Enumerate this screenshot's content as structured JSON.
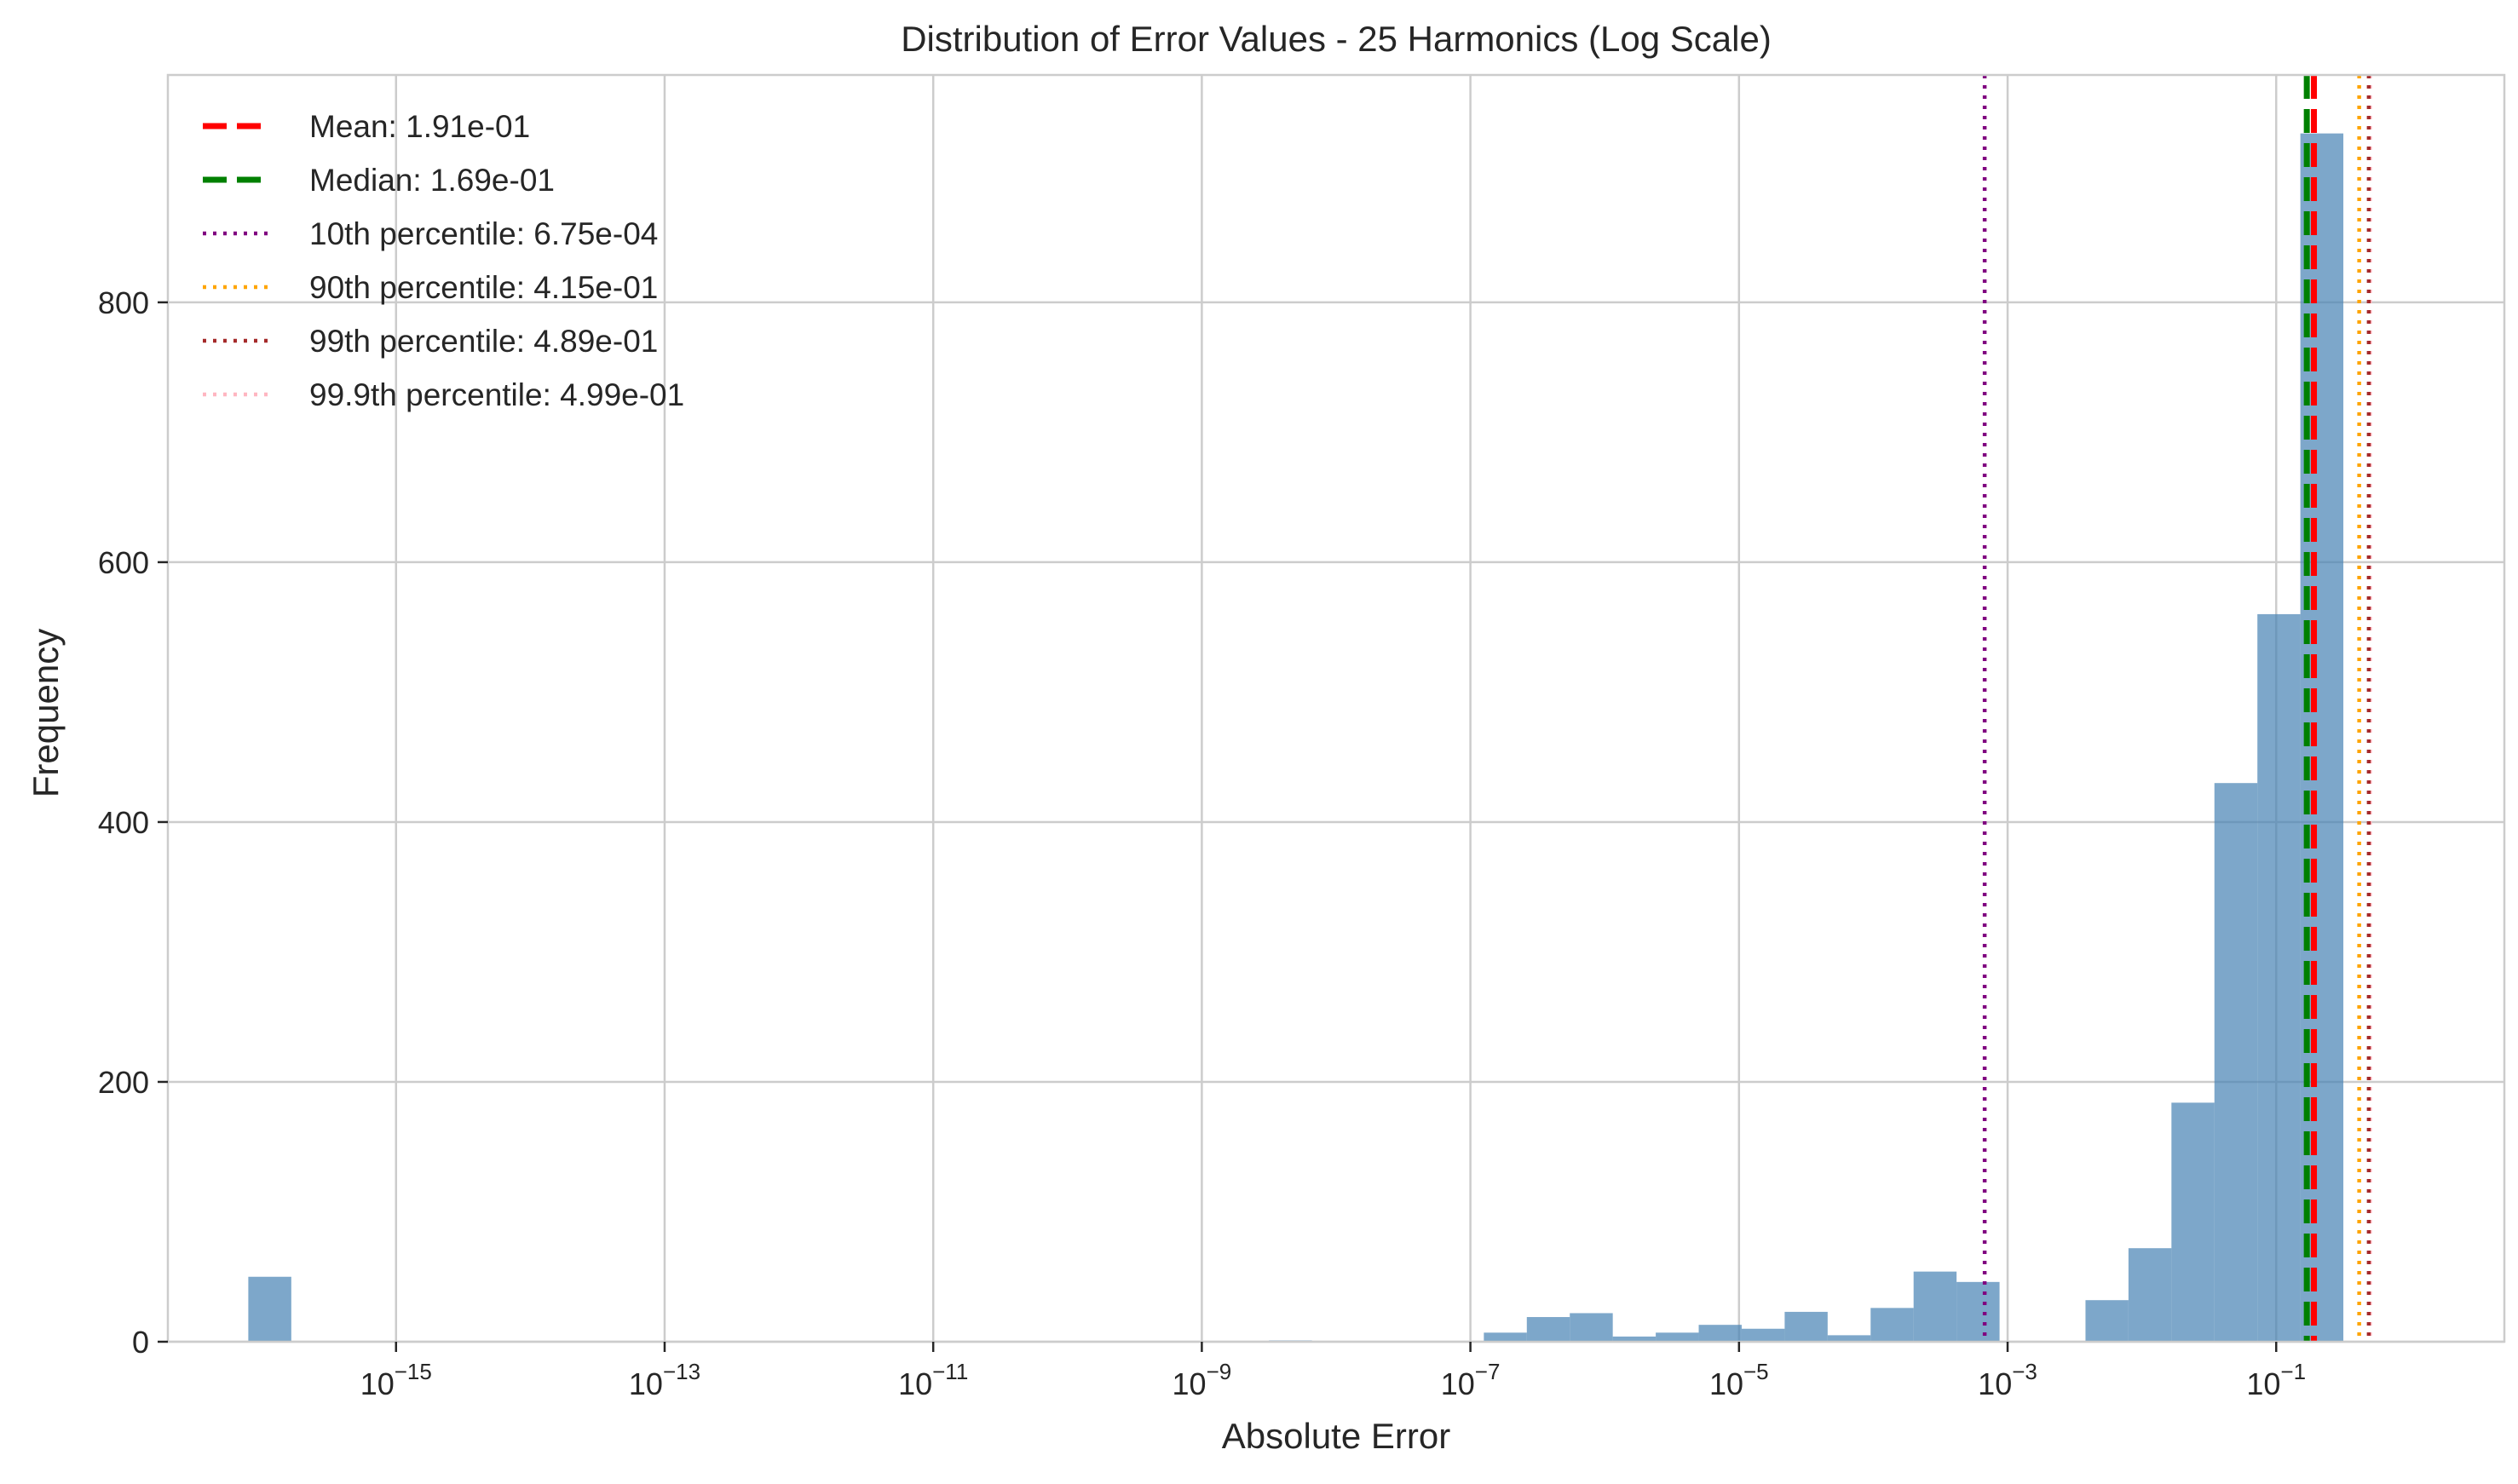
{
  "chart_data": {
    "type": "bar",
    "title": "Distribution of Error Values - 25 Harmonics (Log Scale)",
    "xlabel": "Absolute Error",
    "ylabel": "Frequency",
    "xscale": "log",
    "xlim": [
      2e-17,
      5.0
    ],
    "ylim": [
      0,
      975
    ],
    "grid": true,
    "legend_placement": "top-left",
    "x_ticks": [
      {
        "exp": -15,
        "base": "10",
        "sup": "−15"
      },
      {
        "exp": -13,
        "base": "10",
        "sup": "−13"
      },
      {
        "exp": -11,
        "base": "10",
        "sup": "−11"
      },
      {
        "exp": -9,
        "base": "10",
        "sup": "−9"
      },
      {
        "exp": -7,
        "base": "10",
        "sup": "−7"
      },
      {
        "exp": -5,
        "base": "10",
        "sup": "−5"
      },
      {
        "exp": -3,
        "base": "10",
        "sup": "−3"
      },
      {
        "exp": -1,
        "base": "10",
        "sup": "−1"
      }
    ],
    "y_ticks": [
      {
        "value": 0,
        "label": "0"
      },
      {
        "value": 200,
        "label": "200"
      },
      {
        "value": 400,
        "label": "400"
      },
      {
        "value": 600,
        "label": "600"
      },
      {
        "value": 800,
        "label": "800"
      }
    ],
    "bar_color": "#4682b4",
    "bins": [
      {
        "x0": -16.1,
        "x1": -15.78,
        "count": 50
      },
      {
        "x0": -8.5,
        "x1": -8.18,
        "count": 1
      },
      {
        "x0": -6.9,
        "x1": -6.58,
        "count": 7
      },
      {
        "x0": -6.58,
        "x1": -6.26,
        "count": 19
      },
      {
        "x0": -6.26,
        "x1": -5.94,
        "count": 22
      },
      {
        "x0": -5.94,
        "x1": -5.62,
        "count": 4
      },
      {
        "x0": -5.62,
        "x1": -5.3,
        "count": 7
      },
      {
        "x0": -5.3,
        "x1": -4.98,
        "count": 13
      },
      {
        "x0": -4.98,
        "x1": -4.66,
        "count": 10
      },
      {
        "x0": -4.66,
        "x1": -4.34,
        "count": 23
      },
      {
        "x0": -4.34,
        "x1": -4.02,
        "count": 5
      },
      {
        "x0": -4.02,
        "x1": -3.7,
        "count": 26
      },
      {
        "x0": -3.7,
        "x1": -3.38,
        "count": 54
      },
      {
        "x0": -3.38,
        "x1": -3.06,
        "count": 46
      },
      {
        "x0": -2.42,
        "x1": -2.1,
        "count": 32
      },
      {
        "x0": -2.1,
        "x1": -1.78,
        "count": 72
      },
      {
        "x0": -1.78,
        "x1": -1.46,
        "count": 184
      },
      {
        "x0": -1.46,
        "x1": -1.14,
        "count": 430
      },
      {
        "x0": -1.14,
        "x1": -0.82,
        "count": 560
      },
      {
        "x0": -0.82,
        "x1": -0.5,
        "count": 930
      }
    ],
    "reference_lines": [
      {
        "name": "Mean: 1.91e-01",
        "value": 0.191,
        "color": "#ff0000",
        "style": "dashed"
      },
      {
        "name": "Median: 1.69e-01",
        "value": 0.169,
        "color": "#008000",
        "style": "dashed"
      },
      {
        "name": "10th percentile: 6.75e-04",
        "value": 0.000675,
        "color": "#800080",
        "style": "dotted"
      },
      {
        "name": "90th percentile: 4.15e-01",
        "value": 0.415,
        "color": "#ffa500",
        "style": "dotted"
      },
      {
        "name": "99th percentile: 4.89e-01",
        "value": 0.489,
        "color": "#a52a2a",
        "style": "dotted"
      },
      {
        "name": "99.9th percentile: 4.99e-01",
        "value": 0.499,
        "color": "#ffb6c1",
        "style": "dotted"
      }
    ]
  }
}
